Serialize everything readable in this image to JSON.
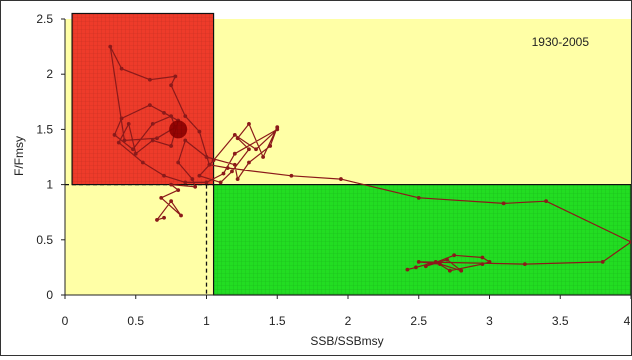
{
  "chart_data": {
    "type": "line",
    "title": "",
    "annotation": "1930-2005",
    "xlabel": "SSB/SSBmsy",
    "ylabel": "F/Fmsy",
    "xlim": [
      0,
      4
    ],
    "ylim": [
      0,
      2.5
    ],
    "xticks": [
      "0",
      "0.5",
      "1",
      "1.5",
      "2",
      "2.5",
      "3",
      "3.5",
      "4"
    ],
    "yticks": [
      "0",
      "0.5",
      "1",
      "1.5",
      "2",
      "2.5"
    ],
    "grid": false,
    "zones": [
      {
        "name": "overfished-overfishing",
        "color": "#ee3b2a",
        "x": [
          0.05,
          1.05
        ],
        "y": [
          1.0,
          2.55
        ]
      },
      {
        "name": "healthy",
        "color": "#22dd22",
        "x": [
          1.05,
          4.0
        ],
        "y": [
          0.0,
          1.0
        ]
      },
      {
        "name": "background",
        "color": "#ffffa6"
      }
    ],
    "reference_lines": {
      "x": 1.0,
      "y": 1.0
    },
    "highlight_point": {
      "x": 0.8,
      "y": 1.5
    },
    "series": [
      {
        "line_color": "#8b1a1a",
        "x": [
          0.7,
          0.65,
          0.75,
          0.82,
          0.68,
          0.8,
          0.75,
          0.92,
          0.9,
          0.8,
          0.85,
          1.0,
          1.2,
          1.22,
          1.3,
          1.45,
          1.5,
          1.4,
          1.3,
          1.22,
          1.3,
          1.18,
          1.1,
          0.95,
          1.05,
          1.2,
          1.35,
          1.5,
          1.2,
          1.12,
          1.0,
          0.85,
          0.7,
          0.55,
          0.38,
          0.45,
          0.5,
          0.62,
          0.75,
          0.8,
          0.7,
          0.6,
          0.4,
          0.35,
          0.48,
          0.62,
          0.75,
          0.78,
          0.65,
          0.42,
          0.32,
          0.4,
          0.6,
          0.78,
          0.75,
          0.85,
          0.95,
          1.02,
          1.15,
          1.6,
          1.95,
          2.5,
          3.1,
          3.4,
          4.0,
          3.8,
          3.25,
          2.5,
          2.65,
          2.8,
          2.7,
          2.55,
          2.75,
          2.95,
          3.0,
          2.95,
          2.72,
          2.62,
          2.48,
          2.42
        ],
        "y": [
          0.7,
          0.68,
          0.85,
          0.72,
          0.88,
          0.95,
          1.0,
          0.98,
          1.05,
          1.2,
          1.4,
          1.25,
          1.18,
          1.05,
          1.2,
          1.35,
          1.52,
          1.25,
          1.55,
          1.42,
          1.32,
          1.12,
          1.02,
          1.08,
          1.22,
          1.45,
          1.32,
          1.5,
          1.28,
          1.1,
          1.02,
          1.02,
          1.08,
          1.2,
          1.38,
          1.55,
          1.28,
          1.4,
          1.35,
          1.58,
          1.65,
          1.72,
          1.6,
          1.45,
          1.32,
          1.55,
          1.62,
          1.52,
          1.42,
          1.4,
          2.25,
          2.05,
          1.95,
          1.98,
          1.9,
          1.62,
          1.48,
          1.18,
          1.15,
          1.08,
          1.05,
          0.88,
          0.83,
          0.85,
          0.48,
          0.3,
          0.28,
          0.3,
          0.28,
          0.22,
          0.32,
          0.26,
          0.36,
          0.34,
          0.3,
          0.28,
          0.22,
          0.3,
          0.25,
          0.23
        ]
      }
    ]
  }
}
